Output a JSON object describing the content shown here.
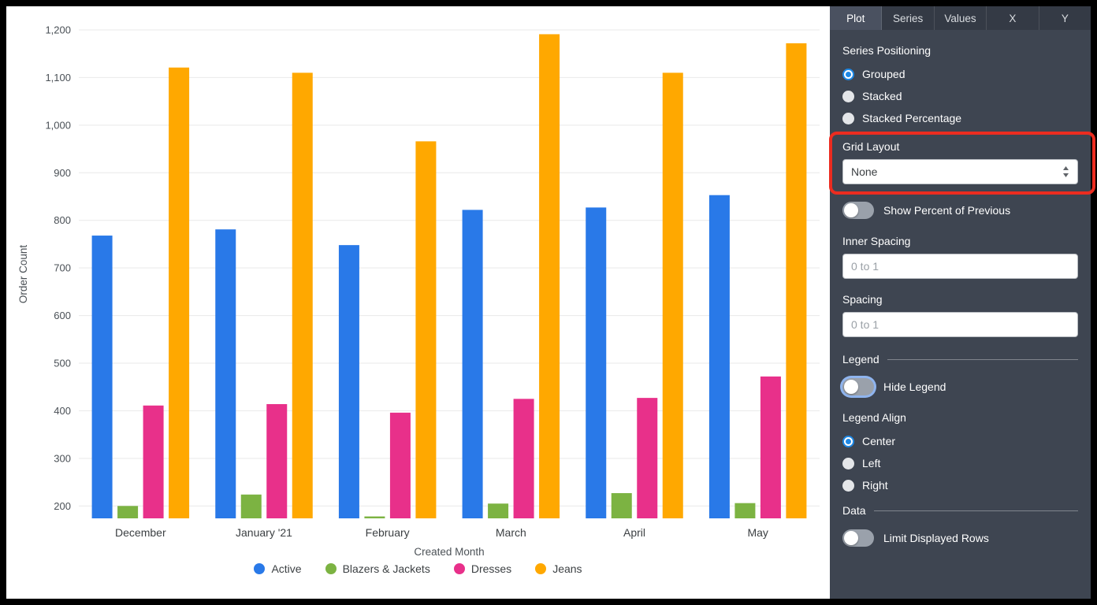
{
  "chart_data": {
    "type": "bar",
    "categories": [
      "December",
      "January '21",
      "February",
      "March",
      "April",
      "May"
    ],
    "series": [
      {
        "name": "Active",
        "color": "#2979e8",
        "values": [
          768,
          781,
          748,
          822,
          827,
          853
        ]
      },
      {
        "name": "Blazers & Jackets",
        "color": "#7cb342",
        "values": [
          200,
          224,
          178,
          205,
          227,
          206
        ]
      },
      {
        "name": "Dresses",
        "color": "#e8308a",
        "values": [
          411,
          414,
          396,
          425,
          427,
          472
        ]
      },
      {
        "name": "Jeans",
        "color": "#ffa800",
        "values": [
          1121,
          1110,
          966,
          1191,
          1110,
          1172
        ]
      }
    ],
    "title": "",
    "xlabel": "Created Month",
    "ylabel": "Order Count",
    "ylim": [
      174,
      1200
    ],
    "grid": true,
    "legend_position": "bottom-center",
    "y_ticks": [
      {
        "v": 200,
        "label": "200"
      },
      {
        "v": 300,
        "label": "300"
      },
      {
        "v": 400,
        "label": "400"
      },
      {
        "v": 500,
        "label": "500"
      },
      {
        "v": 600,
        "label": "600"
      },
      {
        "v": 700,
        "label": "700"
      },
      {
        "v": 800,
        "label": "800"
      },
      {
        "v": 900,
        "label": "900"
      },
      {
        "v": 1000,
        "label": "1,000"
      },
      {
        "v": 1100,
        "label": "1,100"
      },
      {
        "v": 1200,
        "label": "1,200"
      }
    ]
  },
  "panel": {
    "tabs": [
      {
        "label": "Plot",
        "active": true
      },
      {
        "label": "Series",
        "active": false
      },
      {
        "label": "Values",
        "active": false
      },
      {
        "label": "X",
        "active": false
      },
      {
        "label": "Y",
        "active": false
      }
    ],
    "series_positioning": {
      "label": "Series Positioning",
      "options": [
        {
          "label": "Grouped",
          "selected": true
        },
        {
          "label": "Stacked",
          "selected": false
        },
        {
          "label": "Stacked Percentage",
          "selected": false
        }
      ]
    },
    "grid_layout": {
      "label": "Grid Layout",
      "value": "None"
    },
    "show_percent_of_previous": {
      "label": "Show Percent of Previous",
      "on": false
    },
    "inner_spacing": {
      "label": "Inner Spacing",
      "placeholder": "0 to 1",
      "value": ""
    },
    "spacing": {
      "label": "Spacing",
      "placeholder": "0 to 1",
      "value": ""
    },
    "legend_section": {
      "label": "Legend"
    },
    "hide_legend": {
      "label": "Hide Legend",
      "on": false
    },
    "legend_align": {
      "label": "Legend Align",
      "options": [
        {
          "label": "Center",
          "selected": true
        },
        {
          "label": "Left",
          "selected": false
        },
        {
          "label": "Right",
          "selected": false
        }
      ]
    },
    "data_section": {
      "label": "Data"
    },
    "limit_displayed_rows": {
      "label": "Limit Displayed Rows",
      "on": false
    }
  }
}
